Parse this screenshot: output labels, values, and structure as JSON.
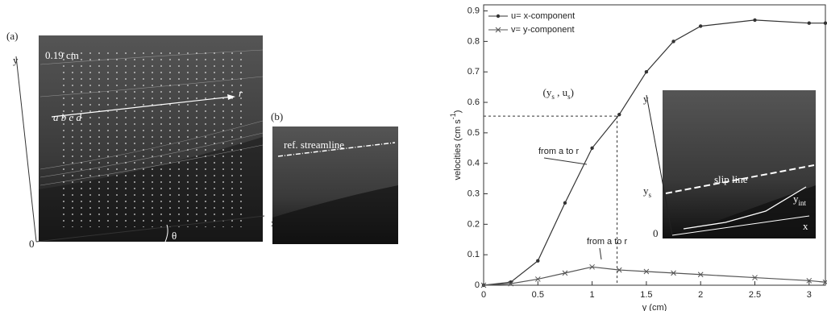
{
  "panel_a": {
    "label": "(a)",
    "scale": "0.19 cm",
    "y_axis": "y",
    "x_axis": "x",
    "origin": "0",
    "angle": "θ",
    "end": "r",
    "points": "a b c d"
  },
  "panel_b": {
    "label": "(b)",
    "streamline": "ref. streamline"
  },
  "chart_data": {
    "type": "line",
    "ylabel_parts": [
      "velocities (cm s",
      "-1",
      ")"
    ],
    "xlabel": "y (cm)",
    "x": [
      0,
      0.25,
      0.5,
      0.75,
      1,
      1.25,
      1.5,
      1.75,
      2,
      2.5,
      3,
      3.15
    ],
    "series": [
      {
        "name": "u= x-component",
        "color": "#333333",
        "marker": "circle",
        "values": [
          0,
          0.01,
          0.08,
          0.27,
          0.45,
          0.56,
          0.7,
          0.8,
          0.85,
          0.87,
          0.86,
          0.86
        ]
      },
      {
        "name": "v= y-component",
        "color": "#555555",
        "marker": "cross",
        "values": [
          0,
          0.005,
          0.02,
          0.04,
          0.06,
          0.05,
          0.045,
          0.04,
          0.035,
          0.025,
          0.015,
          0.01
        ]
      }
    ],
    "xlim": [
      0,
      3.15
    ],
    "ylim": [
      0,
      0.92
    ],
    "xticks": [
      0,
      0.5,
      1,
      1.5,
      2,
      2.5,
      3
    ],
    "yticks": [
      0,
      0.1,
      0.2,
      0.3,
      0.4,
      0.5,
      0.6,
      0.7,
      0.8,
      0.9
    ],
    "slip_point": [
      1.23,
      0.555
    ],
    "slip_label_parts": [
      "(y",
      "s",
      " , u",
      "s",
      ")"
    ],
    "annotations": [
      "from a to r",
      "from a to r"
    ],
    "inset": {
      "slip_line": "slip line",
      "y_axis": "y",
      "x_axis": "x",
      "origin": "0",
      "ys": [
        "y",
        "s"
      ],
      "yint": [
        "y",
        "int"
      ]
    }
  }
}
